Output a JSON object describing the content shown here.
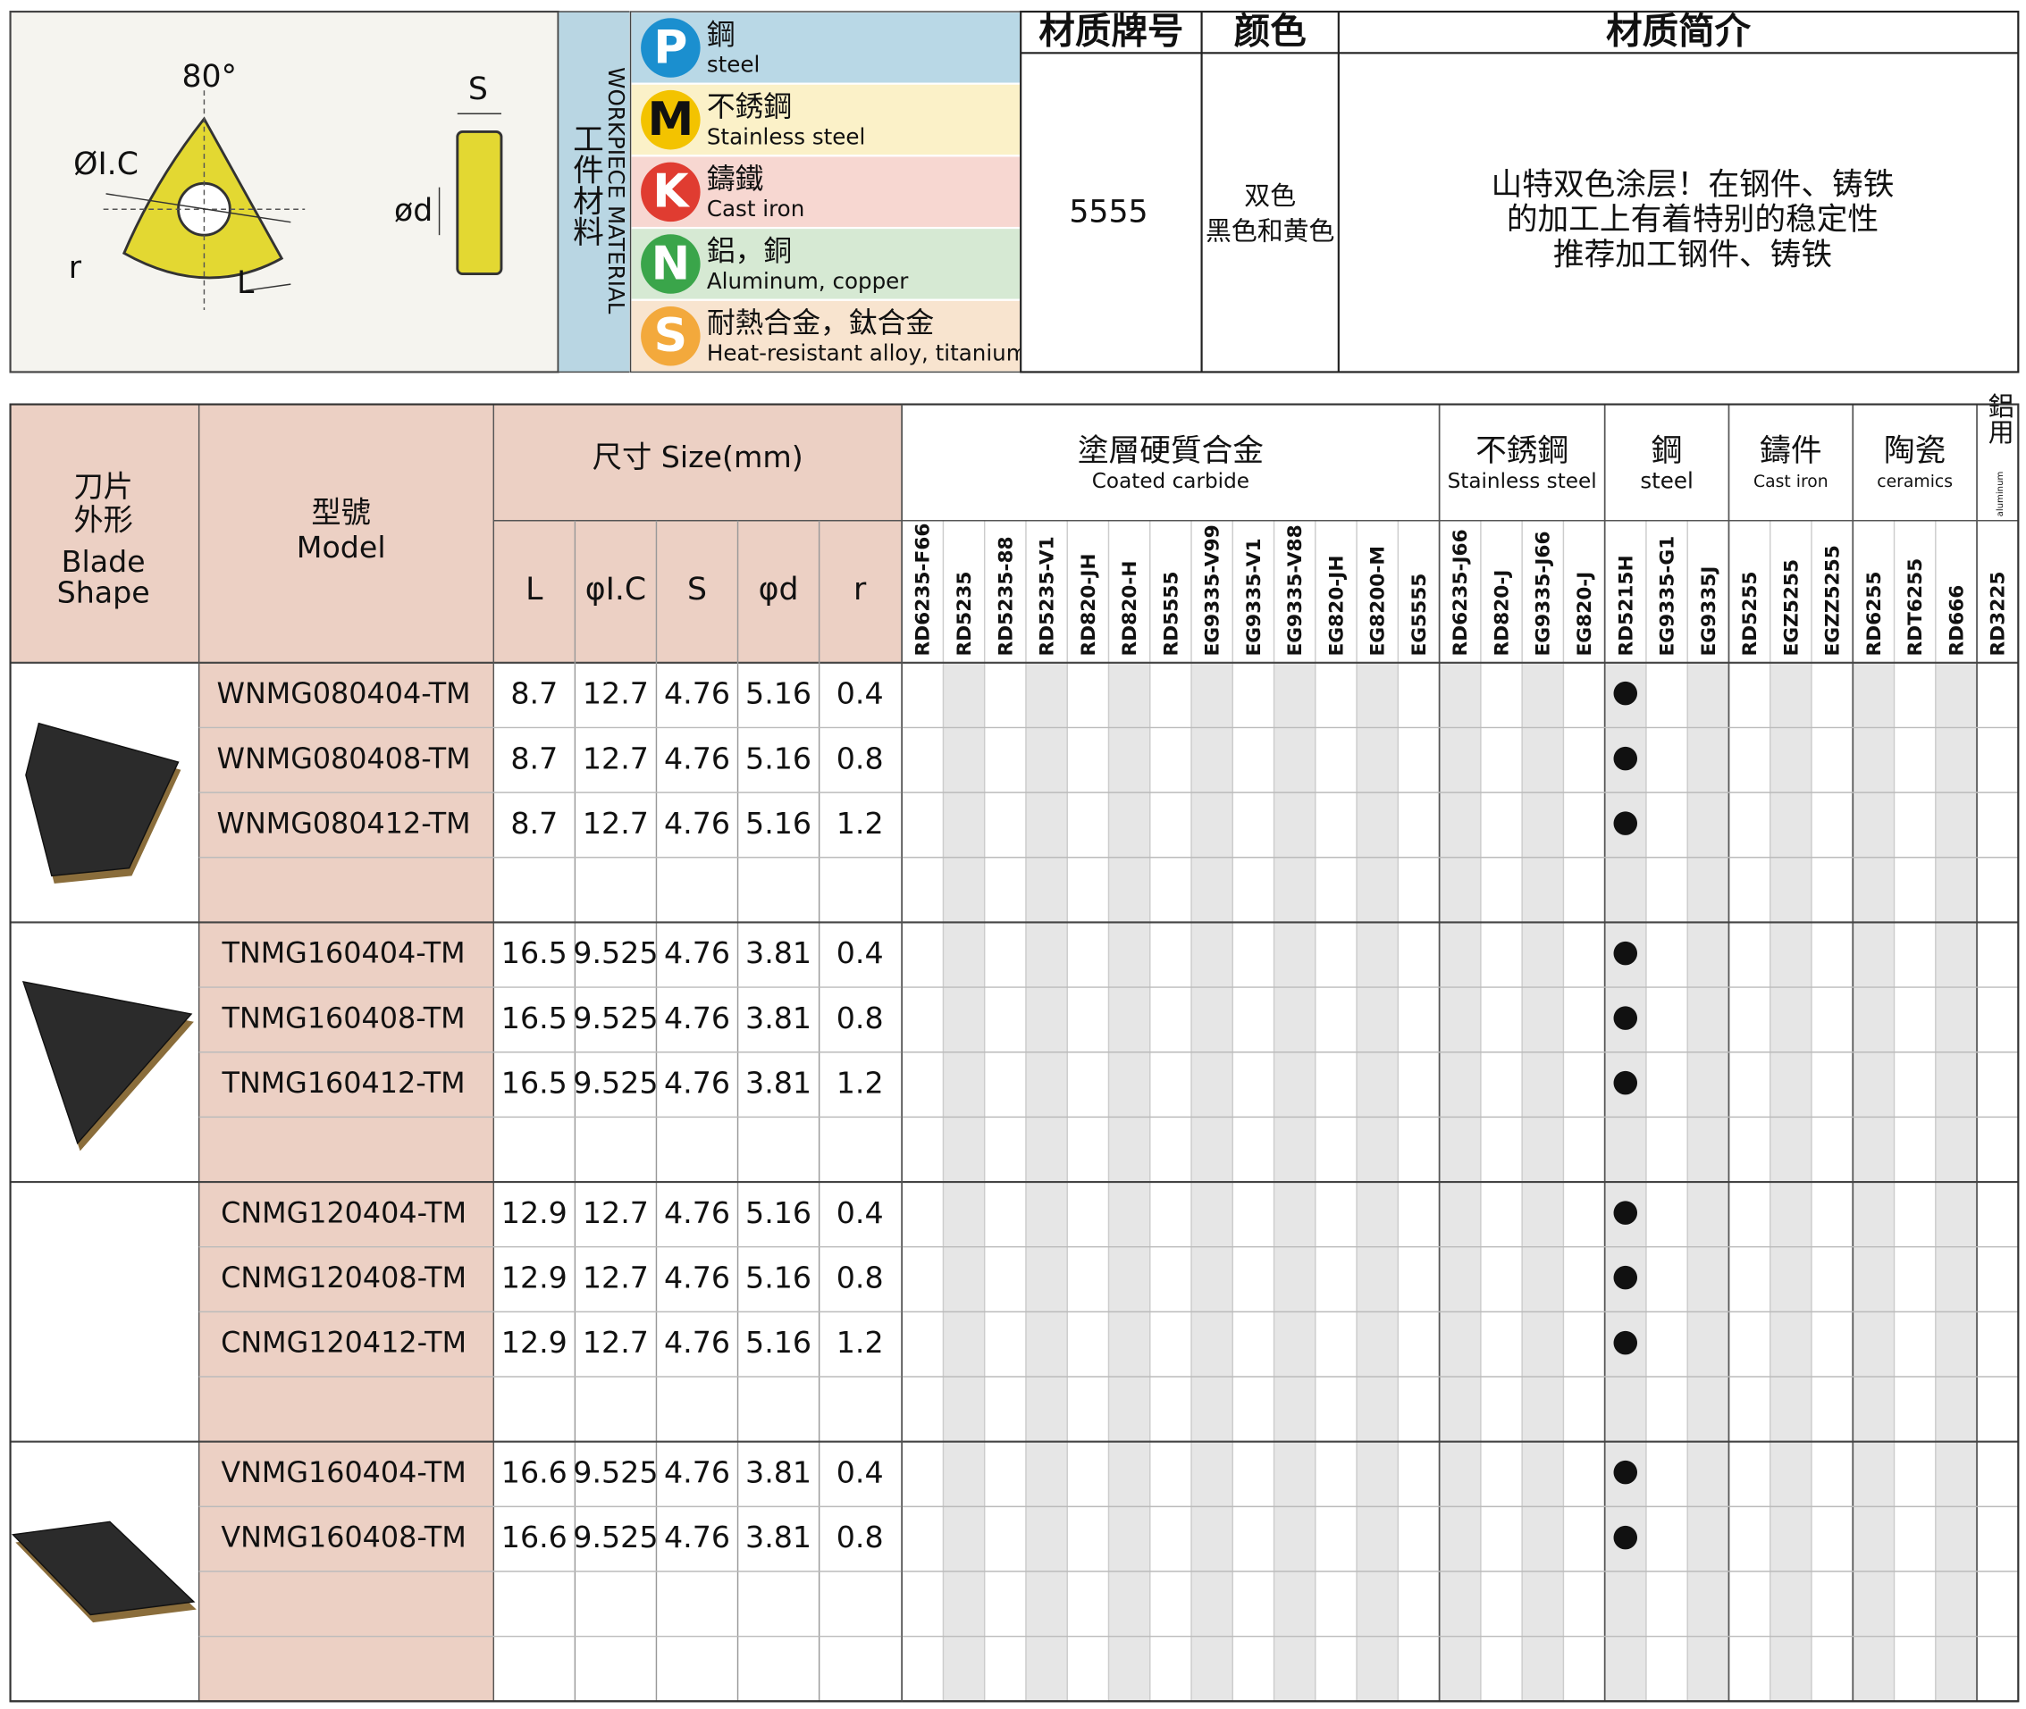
{
  "header": {
    "diagram": {
      "angle": "80°",
      "ic": "ØI.C",
      "s": "S",
      "d": "ød",
      "r": "r",
      "l": "L"
    },
    "workpiece_en": "WORKPIECE MATERIAL",
    "workpiece_zh": "工件材料",
    "materials": [
      {
        "letter": "P",
        "zh": "鋼",
        "en": "steel"
      },
      {
        "letter": "M",
        "zh": "不銹鋼",
        "en": "Stainless steel"
      },
      {
        "letter": "K",
        "zh": "鑄鐵",
        "en": "Cast iron"
      },
      {
        "letter": "N",
        "zh": "鋁，銅",
        "en": "Aluminum, copper"
      },
      {
        "letter": "S",
        "zh": "耐熱合金，鈦合金",
        "en": "Heat-resistant alloy, titanium"
      }
    ]
  },
  "info": {
    "headers": [
      "材质牌号",
      "颜色",
      "材质简介"
    ],
    "grade": "5555",
    "color": [
      "双色",
      "黑色和黄色"
    ],
    "description": [
      "山特双色涂层！在钢件、铸铁",
      "的加工上有着特别的稳定性",
      "推荐加工钢件、铸铁"
    ]
  },
  "table": {
    "shape_header": [
      "刀片",
      "外形",
      "Blade",
      "Shape"
    ],
    "model_header": [
      "型號",
      "Model"
    ],
    "size_header": "尺寸 Size(mm)",
    "size_columns": [
      "L",
      "φI.C",
      "S",
      "φd",
      "r"
    ],
    "groups": [
      {
        "zh": "塗層硬質合金",
        "en": "Coated carbide",
        "grades": [
          "RD6235-F66",
          "RD5235",
          "RD5235-88",
          "RD5235-V1",
          "RD820-JH",
          "RD820-H",
          "RD5555",
          "EG9335-V99",
          "EG9335-V1",
          "EG9335-V88",
          "EG820-JH",
          "EG8200-M",
          "EG5555"
        ]
      },
      {
        "zh": "不銹鋼",
        "en": "Stainless steel",
        "grades": [
          "RD6235-J66",
          "RD820-J",
          "EG9335-J66",
          "EG820-J"
        ]
      },
      {
        "zh": "鋼",
        "en": "steel",
        "grades": [
          "RD5215H",
          "EG9335-G1",
          "EG9335J"
        ]
      },
      {
        "zh": "鑄件",
        "en": "Cast iron",
        "grades": [
          "RD5255",
          "EGZ5255",
          "EGZZ5255"
        ]
      },
      {
        "zh": "陶瓷",
        "en": "ceramics",
        "grades": [
          "RD6255",
          "RDT6255",
          "RD666"
        ]
      },
      {
        "zh": "鋁用",
        "en": "aluminum",
        "grades": [
          "RD3225"
        ]
      }
    ],
    "mark_symbol": "●",
    "blocks": [
      {
        "rows": [
          {
            "cells": [
              "WNMG080404-TM",
              "8.7",
              "12.7",
              "4.76",
              "5.16",
              "0.4"
            ],
            "marked": [
              "RD5215H"
            ]
          },
          {
            "cells": [
              "WNMG080408-TM",
              "8.7",
              "12.7",
              "4.76",
              "5.16",
              "0.8"
            ],
            "marked": [
              "RD5215H"
            ]
          },
          {
            "cells": [
              "WNMG080412-TM",
              "8.7",
              "12.7",
              "4.76",
              "5.16",
              "1.2"
            ],
            "marked": [
              "RD5215H"
            ]
          }
        ]
      },
      {
        "rows": [
          {
            "cells": [
              "TNMG160404-TM",
              "16.5",
              "9.525",
              "4.76",
              "3.81",
              "0.4"
            ],
            "marked": [
              "RD5215H"
            ]
          },
          {
            "cells": [
              "TNMG160408-TM",
              "16.5",
              "9.525",
              "4.76",
              "3.81",
              "0.8"
            ],
            "marked": [
              "RD5215H"
            ]
          },
          {
            "cells": [
              "TNMG160412-TM",
              "16.5",
              "9.525",
              "4.76",
              "3.81",
              "1.2"
            ],
            "marked": [
              "RD5215H"
            ]
          }
        ]
      },
      {
        "rows": [
          {
            "cells": [
              "CNMG120404-TM",
              "12.9",
              "12.7",
              "4.76",
              "5.16",
              "0.4"
            ],
            "marked": [
              "RD5215H"
            ]
          },
          {
            "cells": [
              "CNMG120408-TM",
              "12.9",
              "12.7",
              "4.76",
              "5.16",
              "0.8"
            ],
            "marked": [
              "RD5215H"
            ]
          },
          {
            "cells": [
              "CNMG120412-TM",
              "12.9",
              "12.7",
              "4.76",
              "5.16",
              "1.2"
            ],
            "marked": [
              "RD5215H"
            ]
          }
        ]
      },
      {
        "rows": [
          {
            "cells": [
              "VNMG160404-TM",
              "16.6",
              "9.525",
              "4.76",
              "3.81",
              "0.4"
            ],
            "marked": [
              "RD5215H"
            ]
          },
          {
            "cells": [
              "VNMG160408-TM",
              "16.6",
              "9.525",
              "4.76",
              "3.81",
              "0.8"
            ],
            "marked": [
              "RD5215H"
            ]
          }
        ]
      }
    ]
  }
}
